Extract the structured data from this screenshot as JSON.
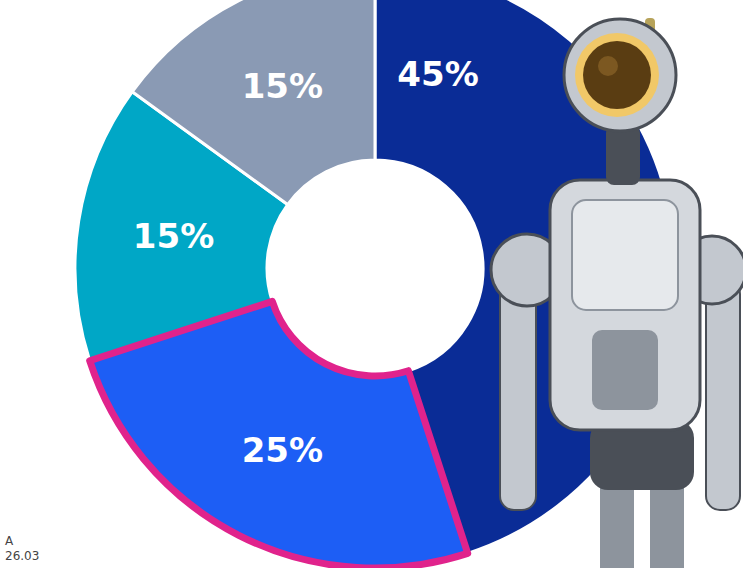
{
  "chart_data": {
    "type": "donut",
    "values": [
      45,
      25,
      15,
      15
    ],
    "value_labels": [
      "45%",
      "25%",
      "15%",
      "15%"
    ],
    "colors": [
      "#0a2c96",
      "#1d5ef5",
      "#00a7c6",
      "#8a9ab4"
    ],
    "data_labels": true,
    "annotations": [
      "A",
      "26.03"
    ]
  }
}
